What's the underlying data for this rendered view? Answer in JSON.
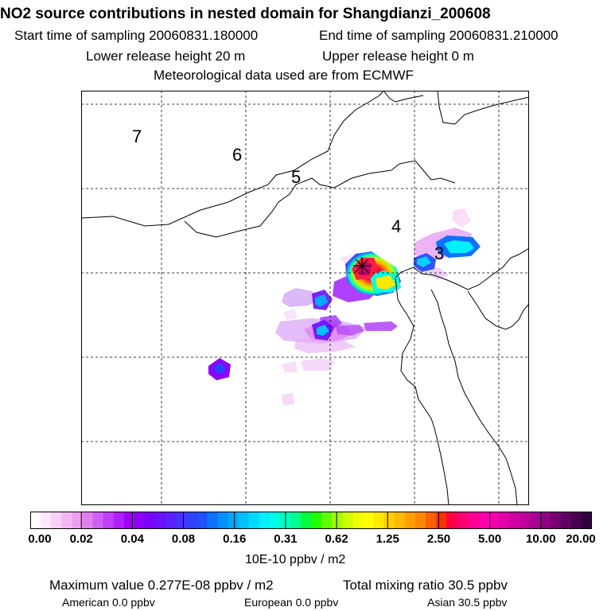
{
  "header": {
    "title": "NO2 source contributions in nested domain for Shangdianzi_200608",
    "start_time": "Start time of sampling 20060831.180000",
    "end_time": "End time of sampling 20060831.210000",
    "lower_release": "Lower release height   20 m",
    "upper_release": "Upper release height    0 m",
    "met_data": "Meteorological data used are from ECMWF"
  },
  "map": {
    "region_labels": [
      "7",
      "6",
      "5",
      "4",
      "3"
    ],
    "receptor_marker": "cross-icon"
  },
  "colorbar": {
    "ticks": [
      "0.00",
      "0.02",
      "0.04",
      "0.08",
      "0.16",
      "0.31",
      "0.62",
      "1.25",
      "2.50",
      "5.00",
      "10.00",
      "20.00"
    ],
    "colors": [
      "#ffffff",
      "#fde8fd",
      "#f8d0f8",
      "#f3b8f3",
      "#eea0ee",
      "#e080ee",
      "#d060f4",
      "#c040f8",
      "#b020fc",
      "#a000ff",
      "#8c00ff",
      "#7a00ff",
      "#6a10ff",
      "#5a20ff",
      "#4a30ff",
      "#3040ff",
      "#2050ff",
      "#1070ff",
      "#0090ff",
      "#00a8ff",
      "#00c0ff",
      "#00d8ff",
      "#00f0ff",
      "#00ffe8",
      "#00ffc0",
      "#00ff90",
      "#00ff40",
      "#20ff00",
      "#60ff00",
      "#a0ff00",
      "#d0ff00",
      "#f0ff00",
      "#ffff00",
      "#ffe800",
      "#ffd000",
      "#ffb800",
      "#ffa000",
      "#ff8800",
      "#ff6000",
      "#ff3000",
      "#ff0040",
      "#ff0070",
      "#ff0090",
      "#ff00a8",
      "#f000b0",
      "#e000a8",
      "#d000a0",
      "#c00098",
      "#a80090",
      "#900080",
      "#780070",
      "#600060",
      "#480050",
      "#300040"
    ],
    "unit": "10E-10 ppbv / m2"
  },
  "footer": {
    "max_value": "Maximum value  0.277E-08 ppbv / m2",
    "total_mixing": "Total mixing ratio       30.5 ppbv",
    "american": "American       0.0 ppbv",
    "european": "European       0.0 ppbv",
    "asian": "Asian       30.5 ppbv"
  }
}
